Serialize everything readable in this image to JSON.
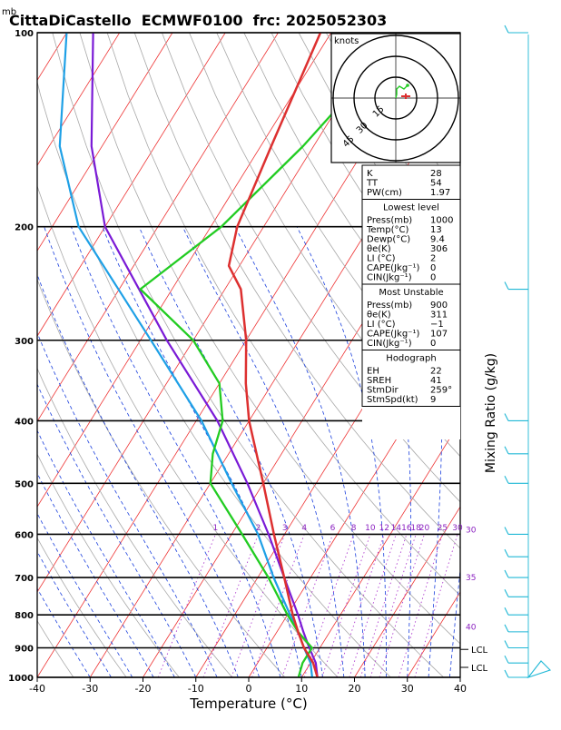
{
  "title": "CittaDiCastello  ECMWF0100  frc: 2025052303",
  "mb_label": "mb",
  "knots_label": "knots",
  "hodo_ring_labels": [
    "15",
    "30",
    "45"
  ],
  "xlabel": "Temperature (°C)",
  "mixing_label": "Mixing Ratio (g/kg)",
  "lcl_label": "LCL",
  "colors": {
    "temperature": "#dd3030",
    "dewpoint": "#22cc22",
    "parcel": "#7a1ad6",
    "virtual": "#1ea0e6",
    "isotherm": "#ee3333",
    "dry_adiabat": "#a8a8a8",
    "moist_adiabat": "#1a3fdd",
    "mixing_ratio": "#b040d0",
    "barb": "#20b8d6"
  },
  "chart_data": {
    "type": "skew-t log-p sounding",
    "x_axis": {
      "label": "Temperature (°C)",
      "range": [
        -40,
        40
      ],
      "ticks": [
        -40,
        -30,
        -20,
        -10,
        0,
        10,
        20,
        30,
        40
      ]
    },
    "y_axis": {
      "label": "mb",
      "scale": "log",
      "range": [
        1000,
        100
      ],
      "ticks": [
        1000,
        900,
        800,
        700,
        600,
        500,
        400,
        300,
        200,
        100
      ]
    },
    "mixing_ratio_labels": [
      "1",
      "2",
      "3",
      "4",
      "6",
      "8",
      "10",
      "12",
      "14",
      "16",
      "18",
      "20",
      "25",
      "30"
    ],
    "moist_labels": [
      {
        "text": "30",
        "p": 590
      },
      {
        "text": "35",
        "p": 700
      },
      {
        "text": "40",
        "p": 835
      }
    ],
    "temperature_profile": [
      [
        1000,
        13
      ],
      [
        950,
        10.5
      ],
      [
        900,
        7
      ],
      [
        850,
        4
      ],
      [
        800,
        1
      ],
      [
        700,
        -5
      ],
      [
        600,
        -12
      ],
      [
        500,
        -20
      ],
      [
        400,
        -30
      ],
      [
        350,
        -35
      ],
      [
        300,
        -40
      ],
      [
        250,
        -47
      ],
      [
        230,
        -52
      ],
      [
        200,
        -55
      ],
      [
        150,
        -58
      ],
      [
        100,
        -62
      ]
    ],
    "dewpoint_profile": [
      [
        1000,
        9.4
      ],
      [
        950,
        8.5
      ],
      [
        900,
        8.5
      ],
      [
        850,
        4
      ],
      [
        800,
        0
      ],
      [
        700,
        -8
      ],
      [
        600,
        -18
      ],
      [
        500,
        -30
      ],
      [
        450,
        -33
      ],
      [
        400,
        -35
      ],
      [
        350,
        -40
      ],
      [
        300,
        -50
      ],
      [
        250,
        -66
      ],
      [
        200,
        -58
      ],
      [
        150,
        -52
      ],
      [
        100,
        -46
      ]
    ],
    "parcel_profile": [
      [
        1000,
        13
      ],
      [
        950,
        11
      ],
      [
        900,
        8
      ],
      [
        850,
        5
      ],
      [
        800,
        2
      ],
      [
        700,
        -5
      ],
      [
        600,
        -13
      ],
      [
        500,
        -23
      ],
      [
        400,
        -36
      ],
      [
        300,
        -55
      ],
      [
        200,
        -80
      ],
      [
        150,
        -92
      ],
      [
        100,
        -105
      ]
    ],
    "virtual_profile": [
      [
        1000,
        12
      ],
      [
        950,
        10
      ],
      [
        900,
        7
      ],
      [
        850,
        4
      ],
      [
        800,
        0.5
      ],
      [
        700,
        -7
      ],
      [
        600,
        -15
      ],
      [
        500,
        -26
      ],
      [
        400,
        -39
      ],
      [
        300,
        -58
      ],
      [
        200,
        -85
      ],
      [
        150,
        -98
      ],
      [
        100,
        -110
      ]
    ],
    "stability_indices": [
      [
        "K",
        "28"
      ],
      [
        "TT",
        "54"
      ],
      [
        "PW(cm)",
        "1.97"
      ]
    ],
    "lowest_level": {
      "title": "Lowest level",
      "rows": [
        [
          "Press(mb)",
          "1000"
        ],
        [
          "Temp(°C)",
          "13"
        ],
        [
          "Dewp(°C)",
          "9.4"
        ],
        [
          "θe(K)",
          "306"
        ],
        [
          "LI (°C)",
          "2"
        ],
        [
          "CAPE(Jkg⁻¹)",
          "0"
        ],
        [
          "CIN(Jkg⁻¹)",
          "0"
        ]
      ]
    },
    "most_unstable": {
      "title": "Most Unstable",
      "rows": [
        [
          "Press(mb)",
          "900"
        ],
        [
          "θe(K)",
          "311"
        ],
        [
          "LI (°C)",
          "−1"
        ],
        [
          "CAPE(Jkg⁻¹)",
          "107"
        ],
        [
          "CIN(Jkg⁻¹)",
          "0"
        ]
      ]
    },
    "hodograph": {
      "title": "Hodograph",
      "rows": [
        [
          "EH",
          "22"
        ],
        [
          "SREH",
          "41"
        ],
        [
          "StmDir",
          "259°"
        ],
        [
          "StmSpd(kt)",
          "9"
        ]
      ]
    },
    "lcl_pressures": [
      905,
      965
    ],
    "wind_barbs_p": [
      1000,
      950,
      900,
      850,
      800,
      750,
      700,
      650,
      600,
      500,
      450,
      400,
      250,
      100
    ]
  }
}
